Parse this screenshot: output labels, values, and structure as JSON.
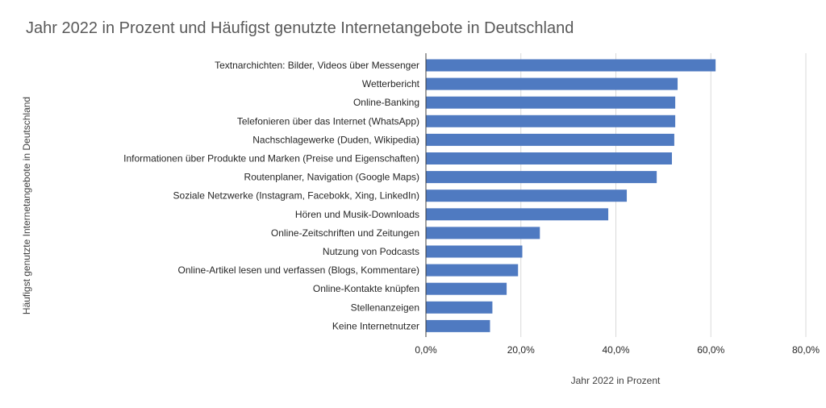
{
  "chart_data": {
    "type": "bar",
    "orientation": "horizontal",
    "title": "Jahr 2022 in Prozent und Häufigst genutzte Internetangebote in Deutschland",
    "xlabel": "Jahr 2022 in Prozent",
    "ylabel": "Häufigst genutzte Internetangebote in Deutschland",
    "xlim": [
      0,
      80
    ],
    "xticks": [
      "0,0%",
      "20,0%",
      "40,0%",
      "60,0%",
      "80,0%"
    ],
    "grid": true,
    "bar_color": "#4F7AC1",
    "categories": [
      "Textnarchichten: Bilder, Videos über Messenger",
      "Wetterbericht",
      "Online-Banking",
      "Telefonieren über das Internet (WhatsApp)",
      "Nachschlagewerke (Duden, Wikipedia)",
      "Informationen über Produkte und Marken (Preise und Eigenschaften)",
      "Routenplaner, Navigation (Google Maps)",
      "Soziale Netzwerke (Instagram, Facebokk, Xing, LinkedIn)",
      "Hören und Musik-Downloads",
      "Online-Zeitschriften und Zeitungen",
      "Nutzung von Podcasts",
      "Online-Artikel lesen und verfassen (Blogs, Kommentare)",
      "Online-Kontakte knüpfen",
      "Stellenanzeigen",
      "Keine Internetnutzer"
    ],
    "values": [
      61,
      53,
      52.5,
      52.5,
      52.3,
      51.8,
      48.6,
      42.3,
      38.4,
      24,
      20.3,
      19.4,
      17,
      14,
      13.5
    ]
  }
}
